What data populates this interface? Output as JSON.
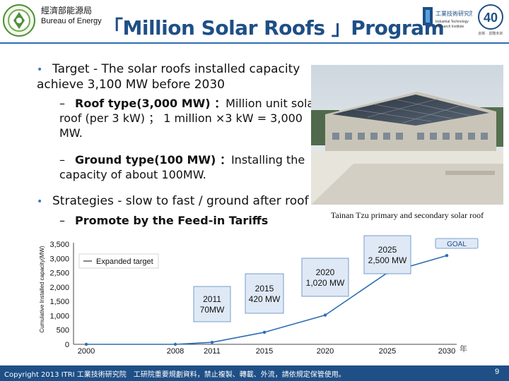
{
  "header": {
    "bureau_zh": "經濟部能源局",
    "bureau_en": "Bureau of Energy",
    "title": "「Million Solar Roofs 」Program",
    "itri_zh": "工業技術研究院",
    "itri_en_1": "Industrial Technology",
    "itri_en_2": "Research Institute",
    "anniv_number": "40",
    "anniv_zh": "創新 · 前瞻未來"
  },
  "bullets": {
    "b1": "Target - The solar roofs installed capacity achieve 3,100 MW before 2030",
    "b1a_lead": "Roof type(3,000 MW) ：",
    "b1a_rest": "Million unit solar roof (per 3 kW) ； 1 million ×3 kW = 3,000 MW.",
    "b1b_lead": "Ground type(100 MW) ：",
    "b1b_rest": "Installing the capacity of about 100MW.",
    "b2": "Strategies - slow to fast / ground after roof",
    "b2a": "Promote by the Feed-in Tariffs"
  },
  "photo": {
    "caption": "Tainan Tzu primary and secondary solar roof"
  },
  "chart_data": {
    "type": "line",
    "ylabel": "Cumulative Installed capacity(MW)",
    "ylim": [
      0,
      3500
    ],
    "y_ticks": [
      "0",
      "500",
      "1,000",
      "1,500",
      "2,000",
      "2,500",
      "3,000",
      "3,500"
    ],
    "y_tick_values": [
      0,
      500,
      1000,
      1500,
      2000,
      2500,
      3000,
      3500
    ],
    "x_ticks": [
      "2000",
      "2008",
      "2011",
      "2015",
      "2020",
      "2025",
      "2030"
    ],
    "x_tick_values": [
      2000,
      2008,
      2011,
      2015,
      2020,
      2025,
      2030
    ],
    "legend": "Expanded target",
    "x_axis_end_label": "年",
    "series": [
      {
        "name": "Expanded target",
        "x": [
          2000,
          2008,
          2011,
          2015,
          2020,
          2025,
          2030
        ],
        "y": [
          0,
          0,
          70,
          420,
          1020,
          2500,
          3100
        ]
      }
    ],
    "callouts": [
      {
        "year": "2011",
        "value": "70MW"
      },
      {
        "year": "2015",
        "value": "420 MW"
      },
      {
        "year": "2020",
        "value": "1,020 MW"
      },
      {
        "year": "2025",
        "value": "2,500 MW"
      }
    ],
    "goal_label": "GOAL"
  },
  "footer": {
    "text": "Copyright 2013 ITRI 工業技術研究院　工研院重要規劃資料，禁止複製、轉載、外流，請依規定保管使用。",
    "page": "9"
  },
  "colors": {
    "brand_blue": "#1e4f86",
    "bullet_blue": "#3a78c4",
    "callout_fill": "#dfe9f6",
    "callout_stroke": "#5b86bf"
  }
}
